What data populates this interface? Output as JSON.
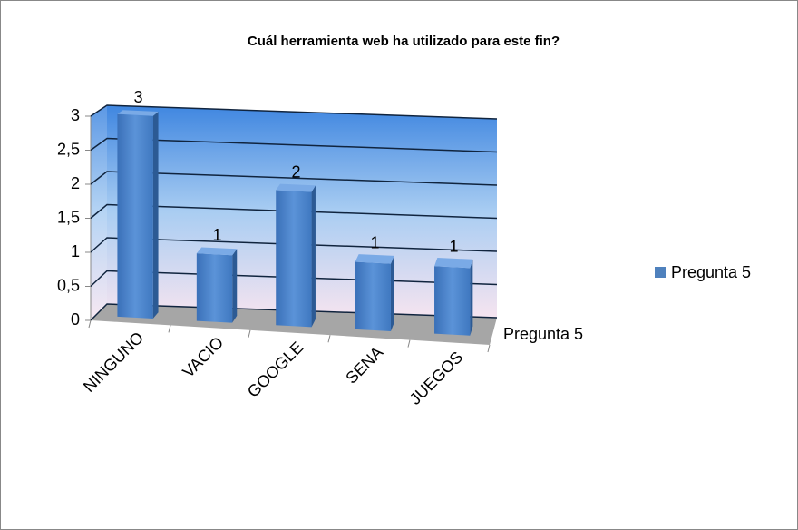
{
  "chart_data": {
    "type": "bar3d",
    "title": "Cuál herramienta web ha utilizado para este fin?",
    "categories": [
      "NINGUNO",
      "VACIO",
      "GOOGLE",
      "SENA",
      "JUEGOS"
    ],
    "series": [
      {
        "name": "Pregunta 5",
        "color": "#4f81bd",
        "values": [
          3,
          1,
          2,
          1,
          1
        ]
      }
    ],
    "ylim": [
      0,
      3
    ],
    "yticks": [
      0,
      {
        "value": 0.5,
        "label": "0,5"
      },
      1,
      {
        "value": 1.5,
        "label": "1,5"
      },
      2,
      {
        "value": 2.5,
        "label": "2,5"
      },
      3
    ],
    "grid": true,
    "legend": "right"
  }
}
